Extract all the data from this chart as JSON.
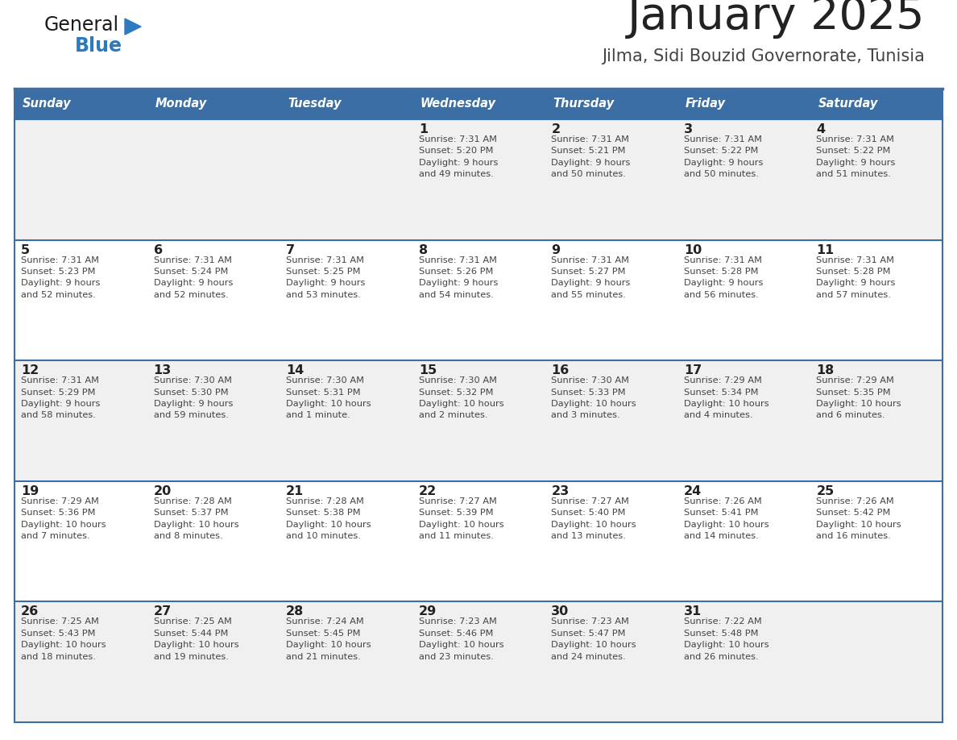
{
  "title": "January 2025",
  "subtitle": "Jilma, Sidi Bouzid Governorate, Tunisia",
  "days_of_week": [
    "Sunday",
    "Monday",
    "Tuesday",
    "Wednesday",
    "Thursday",
    "Friday",
    "Saturday"
  ],
  "header_bg": "#3a6ea5",
  "header_text": "#ffffff",
  "row_bg_even": "#f0f0f0",
  "row_bg_odd": "#ffffff",
  "separator_color": "#3a6ea5",
  "day_num_color": "#222222",
  "info_color": "#444444",
  "title_color": "#222222",
  "subtitle_color": "#444444",
  "logo_general_color": "#1a1a1a",
  "logo_blue_color": "#2e7abf",
  "calendar_data": [
    [
      {
        "day": "",
        "info": ""
      },
      {
        "day": "",
        "info": ""
      },
      {
        "day": "",
        "info": ""
      },
      {
        "day": "1",
        "info": "Sunrise: 7:31 AM\nSunset: 5:20 PM\nDaylight: 9 hours\nand 49 minutes."
      },
      {
        "day": "2",
        "info": "Sunrise: 7:31 AM\nSunset: 5:21 PM\nDaylight: 9 hours\nand 50 minutes."
      },
      {
        "day": "3",
        "info": "Sunrise: 7:31 AM\nSunset: 5:22 PM\nDaylight: 9 hours\nand 50 minutes."
      },
      {
        "day": "4",
        "info": "Sunrise: 7:31 AM\nSunset: 5:22 PM\nDaylight: 9 hours\nand 51 minutes."
      }
    ],
    [
      {
        "day": "5",
        "info": "Sunrise: 7:31 AM\nSunset: 5:23 PM\nDaylight: 9 hours\nand 52 minutes."
      },
      {
        "day": "6",
        "info": "Sunrise: 7:31 AM\nSunset: 5:24 PM\nDaylight: 9 hours\nand 52 minutes."
      },
      {
        "day": "7",
        "info": "Sunrise: 7:31 AM\nSunset: 5:25 PM\nDaylight: 9 hours\nand 53 minutes."
      },
      {
        "day": "8",
        "info": "Sunrise: 7:31 AM\nSunset: 5:26 PM\nDaylight: 9 hours\nand 54 minutes."
      },
      {
        "day": "9",
        "info": "Sunrise: 7:31 AM\nSunset: 5:27 PM\nDaylight: 9 hours\nand 55 minutes."
      },
      {
        "day": "10",
        "info": "Sunrise: 7:31 AM\nSunset: 5:28 PM\nDaylight: 9 hours\nand 56 minutes."
      },
      {
        "day": "11",
        "info": "Sunrise: 7:31 AM\nSunset: 5:28 PM\nDaylight: 9 hours\nand 57 minutes."
      }
    ],
    [
      {
        "day": "12",
        "info": "Sunrise: 7:31 AM\nSunset: 5:29 PM\nDaylight: 9 hours\nand 58 minutes."
      },
      {
        "day": "13",
        "info": "Sunrise: 7:30 AM\nSunset: 5:30 PM\nDaylight: 9 hours\nand 59 minutes."
      },
      {
        "day": "14",
        "info": "Sunrise: 7:30 AM\nSunset: 5:31 PM\nDaylight: 10 hours\nand 1 minute."
      },
      {
        "day": "15",
        "info": "Sunrise: 7:30 AM\nSunset: 5:32 PM\nDaylight: 10 hours\nand 2 minutes."
      },
      {
        "day": "16",
        "info": "Sunrise: 7:30 AM\nSunset: 5:33 PM\nDaylight: 10 hours\nand 3 minutes."
      },
      {
        "day": "17",
        "info": "Sunrise: 7:29 AM\nSunset: 5:34 PM\nDaylight: 10 hours\nand 4 minutes."
      },
      {
        "day": "18",
        "info": "Sunrise: 7:29 AM\nSunset: 5:35 PM\nDaylight: 10 hours\nand 6 minutes."
      }
    ],
    [
      {
        "day": "19",
        "info": "Sunrise: 7:29 AM\nSunset: 5:36 PM\nDaylight: 10 hours\nand 7 minutes."
      },
      {
        "day": "20",
        "info": "Sunrise: 7:28 AM\nSunset: 5:37 PM\nDaylight: 10 hours\nand 8 minutes."
      },
      {
        "day": "21",
        "info": "Sunrise: 7:28 AM\nSunset: 5:38 PM\nDaylight: 10 hours\nand 10 minutes."
      },
      {
        "day": "22",
        "info": "Sunrise: 7:27 AM\nSunset: 5:39 PM\nDaylight: 10 hours\nand 11 minutes."
      },
      {
        "day": "23",
        "info": "Sunrise: 7:27 AM\nSunset: 5:40 PM\nDaylight: 10 hours\nand 13 minutes."
      },
      {
        "day": "24",
        "info": "Sunrise: 7:26 AM\nSunset: 5:41 PM\nDaylight: 10 hours\nand 14 minutes."
      },
      {
        "day": "25",
        "info": "Sunrise: 7:26 AM\nSunset: 5:42 PM\nDaylight: 10 hours\nand 16 minutes."
      }
    ],
    [
      {
        "day": "26",
        "info": "Sunrise: 7:25 AM\nSunset: 5:43 PM\nDaylight: 10 hours\nand 18 minutes."
      },
      {
        "day": "27",
        "info": "Sunrise: 7:25 AM\nSunset: 5:44 PM\nDaylight: 10 hours\nand 19 minutes."
      },
      {
        "day": "28",
        "info": "Sunrise: 7:24 AM\nSunset: 5:45 PM\nDaylight: 10 hours\nand 21 minutes."
      },
      {
        "day": "29",
        "info": "Sunrise: 7:23 AM\nSunset: 5:46 PM\nDaylight: 10 hours\nand 23 minutes."
      },
      {
        "day": "30",
        "info": "Sunrise: 7:23 AM\nSunset: 5:47 PM\nDaylight: 10 hours\nand 24 minutes."
      },
      {
        "day": "31",
        "info": "Sunrise: 7:22 AM\nSunset: 5:48 PM\nDaylight: 10 hours\nand 26 minutes."
      },
      {
        "day": "",
        "info": ""
      }
    ]
  ]
}
